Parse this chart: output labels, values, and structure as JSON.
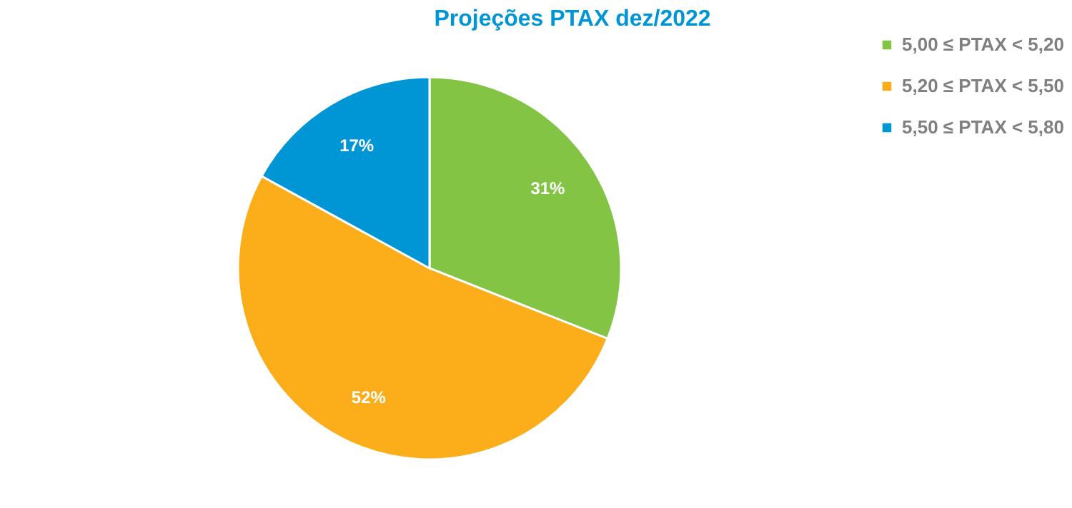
{
  "chart_data": {
    "type": "pie",
    "title": "Projeções PTAX dez/2022",
    "categories": [
      "5,00 ≤ PTAX < 5,20",
      "5,20 ≤ PTAX < 5,50",
      "5,50 ≤ PTAX < 5,80"
    ],
    "values": [
      31,
      52,
      17
    ],
    "colors": [
      "#84c444",
      "#fbad1a",
      "#0096d6"
    ],
    "value_labels": [
      "31%",
      "52%",
      "17%"
    ],
    "legend": "right"
  }
}
